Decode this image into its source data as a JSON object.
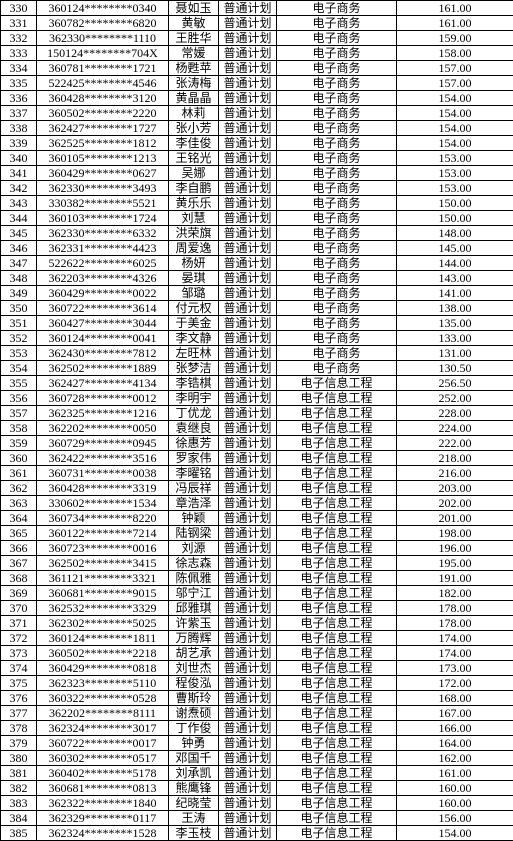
{
  "columns": [
    "idx",
    "id",
    "name",
    "plan",
    "major",
    "score"
  ],
  "rows": [
    [
      "330",
      "360124********0340",
      "聂如玉",
      "普通计划",
      "电子商务",
      "161.00"
    ],
    [
      "331",
      "360782********6820",
      "黄敏",
      "普通计划",
      "电子商务",
      "161.00"
    ],
    [
      "332",
      "362330********1110",
      "王胜华",
      "普通计划",
      "电子商务",
      "159.00"
    ],
    [
      "333",
      "150124********704X",
      "常媛",
      "普通计划",
      "电子商务",
      "158.00"
    ],
    [
      "334",
      "360781********1721",
      "杨甦苹",
      "普通计划",
      "电子商务",
      "157.00"
    ],
    [
      "335",
      "522425********4546",
      "张涛梅",
      "普通计划",
      "电子商务",
      "157.00"
    ],
    [
      "336",
      "360428********3120",
      "黄晶晶",
      "普通计划",
      "电子商务",
      "154.00"
    ],
    [
      "337",
      "360502********2220",
      "林莉",
      "普通计划",
      "电子商务",
      "154.00"
    ],
    [
      "338",
      "362427********1727",
      "张小芳",
      "普通计划",
      "电子商务",
      "154.00"
    ],
    [
      "339",
      "362525********1812",
      "李佳俊",
      "普通计划",
      "电子商务",
      "154.00"
    ],
    [
      "340",
      "360105********1213",
      "王铭光",
      "普通计划",
      "电子商务",
      "153.00"
    ],
    [
      "341",
      "360429********0627",
      "吴娜",
      "普通计划",
      "电子商务",
      "153.00"
    ],
    [
      "342",
      "362330********3493",
      "李自鹏",
      "普通计划",
      "电子商务",
      "153.00"
    ],
    [
      "343",
      "330382********5521",
      "黄乐乐",
      "普通计划",
      "电子商务",
      "150.00"
    ],
    [
      "344",
      "360103********1724",
      "刘慧",
      "普通计划",
      "电子商务",
      "150.00"
    ],
    [
      "345",
      "362330********6332",
      "洪荣旗",
      "普通计划",
      "电子商务",
      "148.00"
    ],
    [
      "346",
      "362331********4423",
      "周爱逸",
      "普通计划",
      "电子商务",
      "145.00"
    ],
    [
      "347",
      "522622********6025",
      "杨妍",
      "普通计划",
      "电子商务",
      "144.00"
    ],
    [
      "348",
      "362203********4326",
      "晏琪",
      "普通计划",
      "电子商务",
      "143.00"
    ],
    [
      "349",
      "360429********0022",
      "邹璐",
      "普通计划",
      "电子商务",
      "141.00"
    ],
    [
      "350",
      "360722********3614",
      "付元权",
      "普通计划",
      "电子商务",
      "138.00"
    ],
    [
      "351",
      "360427********3044",
      "于美金",
      "普通计划",
      "电子商务",
      "135.00"
    ],
    [
      "352",
      "360124********0041",
      "李文静",
      "普通计划",
      "电子商务",
      "133.00"
    ],
    [
      "353",
      "362430********7812",
      "左旺林",
      "普通计划",
      "电子商务",
      "131.00"
    ],
    [
      "354",
      "362502********1889",
      "张梦洁",
      "普通计划",
      "电子商务",
      "130.50"
    ],
    [
      "355",
      "362427********4134",
      "李锆棋",
      "普通计划",
      "电子信息工程",
      "256.50"
    ],
    [
      "356",
      "360728********0012",
      "李明宇",
      "普通计划",
      "电子信息工程",
      "252.00"
    ],
    [
      "357",
      "362325********1216",
      "丁优龙",
      "普通计划",
      "电子信息工程",
      "228.00"
    ],
    [
      "358",
      "362202********0050",
      "袁继良",
      "普通计划",
      "电子信息工程",
      "224.00"
    ],
    [
      "359",
      "360729********0945",
      "徐惠芳",
      "普通计划",
      "电子信息工程",
      "222.00"
    ],
    [
      "360",
      "362422********3516",
      "罗家伟",
      "普通计划",
      "电子信息工程",
      "218.00"
    ],
    [
      "361",
      "360731********0038",
      "李曜铭",
      "普通计划",
      "电子信息工程",
      "216.00"
    ],
    [
      "362",
      "360428********3319",
      "冯辰祥",
      "普通计划",
      "电子信息工程",
      "203.00"
    ],
    [
      "363",
      "330602********1534",
      "章浩泽",
      "普通计划",
      "电子信息工程",
      "202.00"
    ],
    [
      "364",
      "360734********8220",
      "钟颖",
      "普通计划",
      "电子信息工程",
      "201.00"
    ],
    [
      "365",
      "360122********7214",
      "陆钢梁",
      "普通计划",
      "电子信息工程",
      "198.00"
    ],
    [
      "366",
      "360723********0016",
      "刘源",
      "普通计划",
      "电子信息工程",
      "196.00"
    ],
    [
      "367",
      "362502********3415",
      "徐志森",
      "普通计划",
      "电子信息工程",
      "195.00"
    ],
    [
      "368",
      "361121********3321",
      "陈佩雅",
      "普通计划",
      "电子信息工程",
      "191.00"
    ],
    [
      "369",
      "360681********9015",
      "邬宁江",
      "普通计划",
      "电子信息工程",
      "182.00"
    ],
    [
      "370",
      "362532********3329",
      "邱雅琪",
      "普通计划",
      "电子信息工程",
      "178.00"
    ],
    [
      "371",
      "362302********5025",
      "许紫玉",
      "普通计划",
      "电子信息工程",
      "178.00"
    ],
    [
      "372",
      "360124********1811",
      "万腾辉",
      "普通计划",
      "电子信息工程",
      "174.00"
    ],
    [
      "373",
      "360502********2218",
      "胡艺承",
      "普通计划",
      "电子信息工程",
      "174.00"
    ],
    [
      "374",
      "360429********0818",
      "刘世杰",
      "普通计划",
      "电子信息工程",
      "173.00"
    ],
    [
      "375",
      "362323********5110",
      "程俊泓",
      "普通计划",
      "电子信息工程",
      "172.00"
    ],
    [
      "376",
      "360322********0528",
      "曹斯玲",
      "普通计划",
      "电子信息工程",
      "168.00"
    ],
    [
      "377",
      "362202********8111",
      "谢焘硕",
      "普通计划",
      "电子信息工程",
      "167.00"
    ],
    [
      "378",
      "362324********3017",
      "丁作俊",
      "普通计划",
      "电子信息工程",
      "166.00"
    ],
    [
      "379",
      "360722********0017",
      "钟勇",
      "普通计划",
      "电子信息工程",
      "164.00"
    ],
    [
      "380",
      "360302********0517",
      "邓国千",
      "普通计划",
      "电子信息工程",
      "162.00"
    ],
    [
      "381",
      "360402********5178",
      "刘承凯",
      "普通计划",
      "电子信息工程",
      "161.00"
    ],
    [
      "382",
      "360681********0813",
      "熊鹰锋",
      "普通计划",
      "电子信息工程",
      "160.00"
    ],
    [
      "383",
      "362322********1840",
      "纪晓莹",
      "普通计划",
      "电子信息工程",
      "160.00"
    ],
    [
      "384",
      "362329********0117",
      "王涛",
      "普通计划",
      "电子信息工程",
      "156.00"
    ],
    [
      "385",
      "362324********1528",
      "李玉枝",
      "普通计划",
      "电子信息工程",
      "154.00"
    ]
  ]
}
